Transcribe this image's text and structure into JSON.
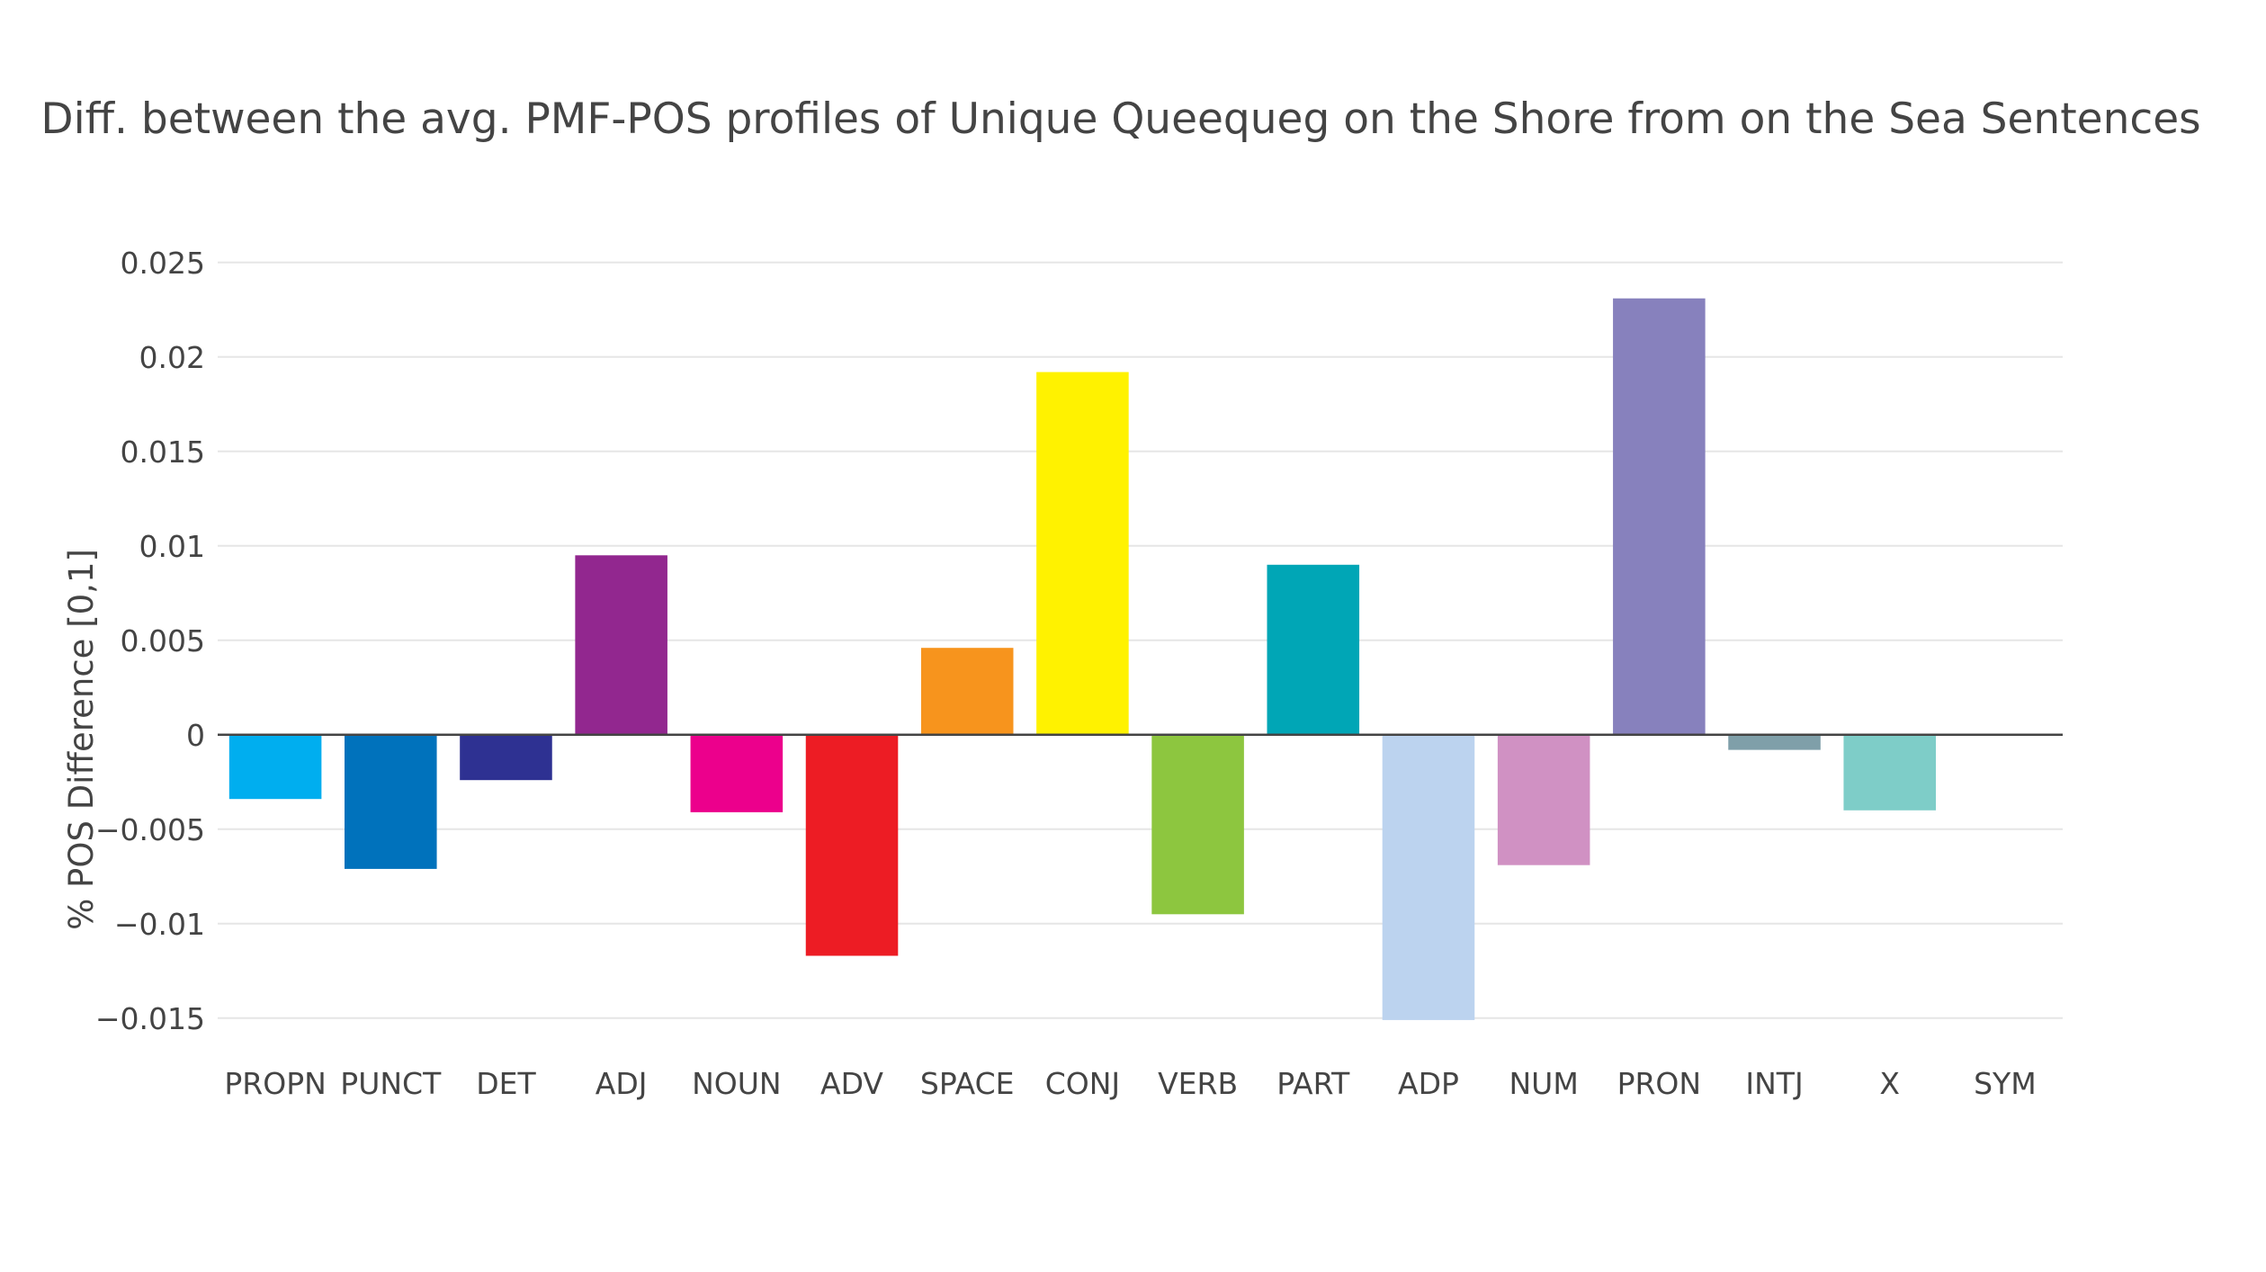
{
  "chart_data": {
    "type": "bar",
    "title": "Diff. between the avg. PMF-POS profiles of Unique Queequeg on the Shore from on the Sea Sentences",
    "xlabel": "",
    "ylabel": "% POS Difference [0,1]",
    "categories": [
      "PROPN",
      "PUNCT",
      "DET",
      "ADJ",
      "NOUN",
      "ADV",
      "SPACE",
      "CONJ",
      "VERB",
      "PART",
      "ADP",
      "NUM",
      "PRON",
      "INTJ",
      "X",
      "SYM"
    ],
    "values": [
      -0.0034,
      -0.0071,
      -0.0024,
      0.0095,
      -0.0041,
      -0.0117,
      0.0046,
      0.0192,
      -0.0095,
      0.009,
      -0.0151,
      -0.0069,
      0.0231,
      -0.0008,
      -0.004,
      0
    ],
    "colors": [
      "#00aeef",
      "#0072bc",
      "#2e3192",
      "#92278f",
      "#ec008c",
      "#ed1c24",
      "#f7941d",
      "#fff200",
      "#8dc63f",
      "#00a6b6",
      "#bcd3ef",
      "#d091c3",
      "#8781bd",
      "#7f9fa9",
      "#7ecdc8",
      "#888888"
    ],
    "ylim": [
      -0.0162,
      0.0258
    ],
    "yticks": [
      -0.015,
      -0.01,
      -0.005,
      0,
      0.005,
      0.01,
      0.015,
      0.02,
      0.025
    ],
    "ytick_labels": [
      "−0.015",
      "−0.01",
      "−0.005",
      "0",
      "0.005",
      "0.01",
      "0.015",
      "0.02",
      "0.025"
    ],
    "grid": true,
    "legend": "none"
  }
}
